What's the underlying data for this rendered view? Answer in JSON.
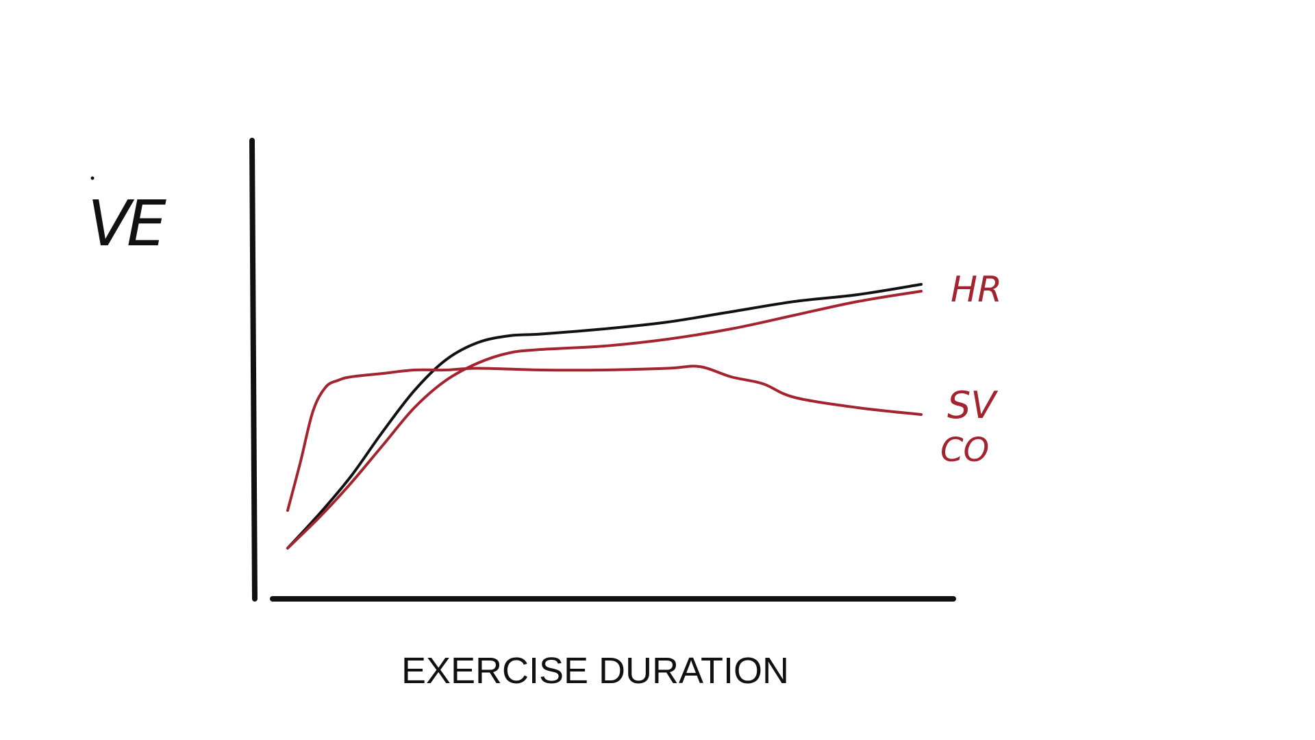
{
  "chart_data": {
    "type": "line",
    "title": "",
    "xlabel": "EXERCISE DURATION",
    "ylabel": "VE",
    "xlim": [
      0,
      100
    ],
    "ylim": [
      0,
      100
    ],
    "grid": false,
    "legend": "inline-right",
    "series": [
      {
        "name": "",
        "color": "#111111",
        "x": [
          0,
          5,
          10,
          15,
          20,
          25,
          30,
          35,
          40,
          50,
          60,
          70,
          80,
          90,
          100
        ],
        "y": [
          0,
          10,
          21,
          34,
          46,
          55,
          60,
          62,
          62.5,
          64,
          66,
          69,
          72,
          74,
          77
        ]
      },
      {
        "name": "HR",
        "color": "#a3232e",
        "x": [
          0,
          5,
          10,
          15,
          20,
          25,
          30,
          35,
          40,
          50,
          60,
          70,
          80,
          90,
          100
        ],
        "y": [
          0,
          9,
          19,
          30,
          41,
          49,
          54,
          57,
          58,
          59,
          61,
          64,
          68,
          72,
          75
        ]
      },
      {
        "name": "SV",
        "color": "#a3232e",
        "x": [
          0,
          2,
          4,
          6,
          8,
          10,
          15,
          20,
          25,
          30,
          40,
          50,
          60,
          65,
          70,
          75,
          80,
          90,
          100
        ],
        "y": [
          11,
          25,
          40,
          47,
          49,
          50,
          51,
          52,
          52,
          52.5,
          52,
          52,
          52.5,
          53,
          50,
          48,
          44,
          41,
          39
        ]
      }
    ],
    "annotations": [
      "CO"
    ]
  },
  "colors": {
    "ink": "#111111",
    "accent": "#a3232e"
  }
}
